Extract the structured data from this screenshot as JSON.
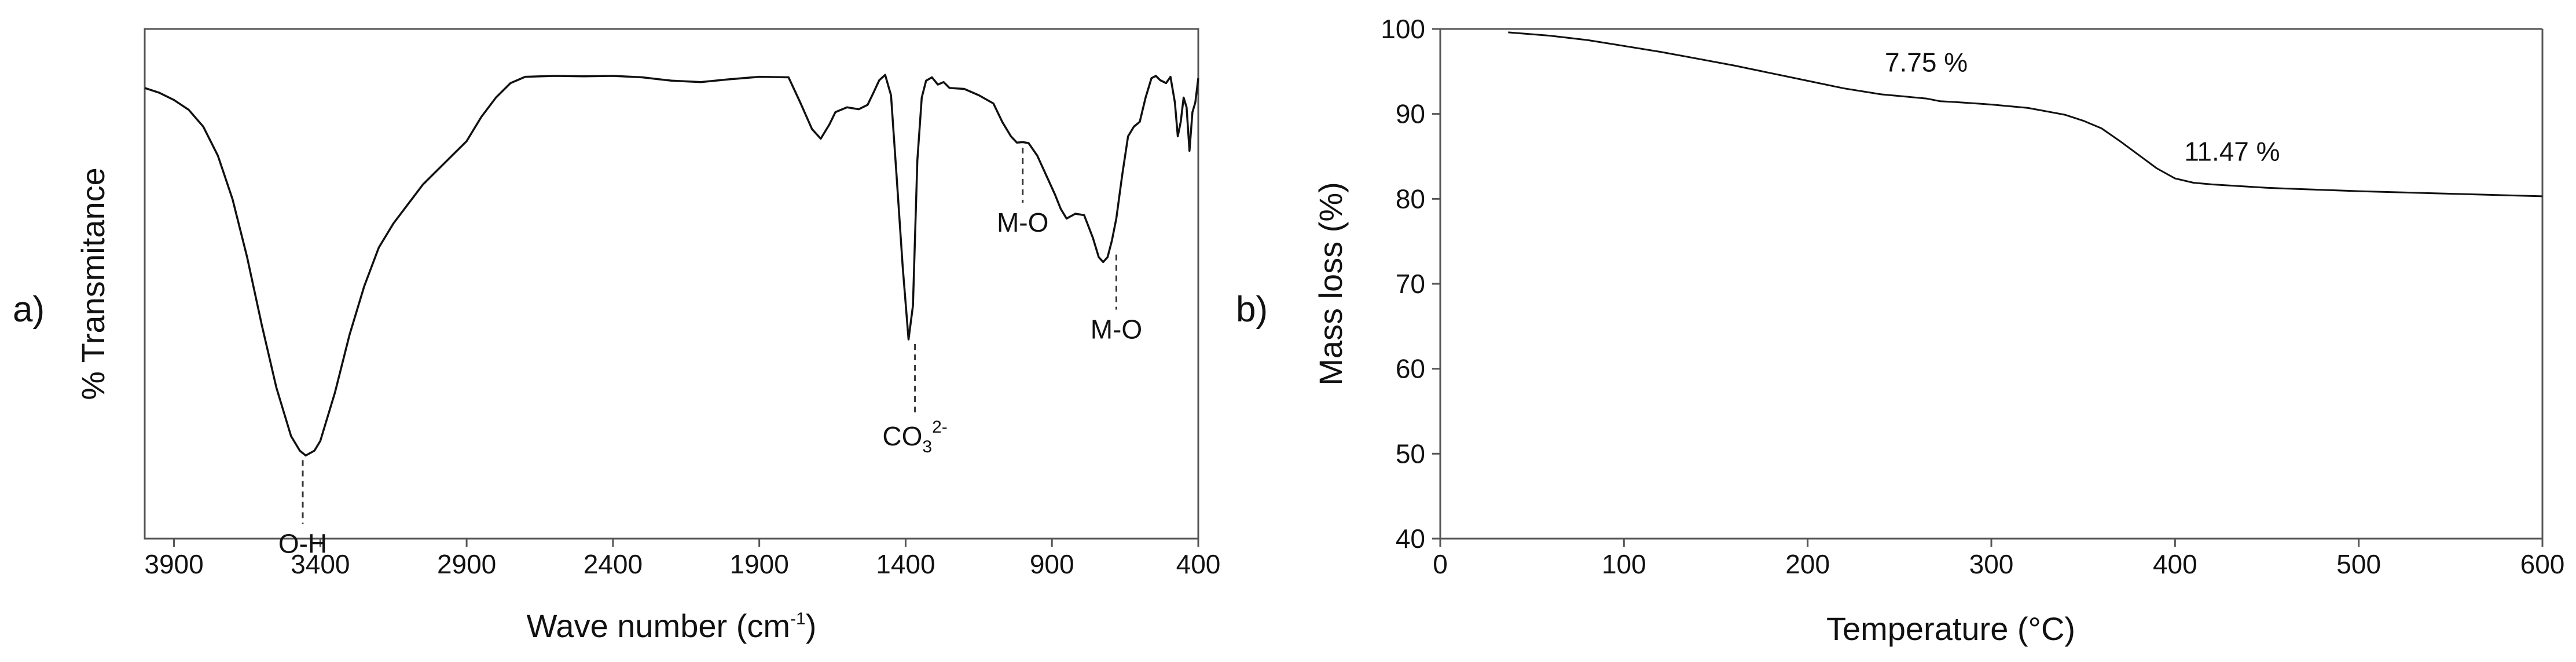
{
  "chart_data": [
    {
      "panel": "a)",
      "type": "line",
      "title": "",
      "xlabel": "Wave number (cm",
      "xlabel_sup": "-1",
      "xlabel_suffix": ")",
      "ylabel": "% Transmitance",
      "xlim": [
        4000,
        400
      ],
      "x_reversed": true,
      "xticks": [
        "3900",
        "3400",
        "2900",
        "2400",
        "1900",
        "1400",
        "900",
        "400"
      ],
      "yticks": [],
      "ylim": [
        0,
        100
      ],
      "grid": false,
      "legend": "none",
      "series": [
        {
          "x": [
            4000,
            3950,
            3900,
            3850,
            3800,
            3750,
            3700,
            3650,
            3600,
            3550,
            3500,
            3470,
            3450,
            3420,
            3400,
            3350,
            3300,
            3250,
            3200,
            3150,
            3100,
            3050,
            3000,
            2950,
            2900,
            2850,
            2800,
            2750,
            2700,
            2600,
            2500,
            2400,
            2300,
            2200,
            2100,
            2000,
            1900,
            1800,
            1760,
            1720,
            1690,
            1660,
            1640,
            1600,
            1560,
            1530,
            1510,
            1490,
            1470,
            1450,
            1430,
            1410,
            1390,
            1375,
            1360,
            1345,
            1330,
            1310,
            1290,
            1270,
            1250,
            1200,
            1150,
            1100,
            1070,
            1040,
            1020,
            1000,
            980,
            950,
            920,
            890,
            870,
            850,
            820,
            790,
            760,
            740,
            725,
            710,
            695,
            680,
            660,
            640,
            620,
            600,
            580,
            560,
            545,
            530,
            510,
            495,
            480,
            470,
            460,
            450,
            440,
            430,
            420,
            410,
            400
          ],
          "y": [
            89,
            88,
            86.5,
            84.5,
            81,
            75,
            66,
            54,
            40,
            27,
            17,
            14,
            13,
            14,
            16,
            26,
            38,
            48,
            56,
            61,
            65,
            69,
            72,
            75,
            78,
            83,
            87,
            90,
            91.3,
            91.5,
            91.4,
            91.5,
            91.2,
            90.5,
            90.2,
            90.8,
            91.3,
            91.2,
            86,
            80.5,
            78.5,
            81.5,
            84,
            85,
            84.6,
            85.5,
            88,
            90.6,
            91.7,
            87.5,
            70,
            52,
            37,
            44,
            74,
            87,
            90.5,
            91.2,
            89.7,
            90.2,
            89,
            88.8,
            87.5,
            85.8,
            82,
            79,
            77.7,
            77.8,
            77.6,
            75,
            71,
            67,
            64,
            62,
            63,
            62.7,
            58,
            54,
            53,
            54,
            57.5,
            62,
            71,
            79,
            81,
            82,
            87,
            91,
            91.5,
            90.6,
            90,
            91.3,
            86,
            79,
            82,
            87,
            85,
            76,
            84,
            86,
            91
          ]
        }
      ],
      "annotations": [
        {
          "label": "O-H",
          "x": 3460,
          "y": 13
        },
        {
          "label": "CO",
          "sub": "3",
          "sup": "2-",
          "x": 1368,
          "y": 37
        },
        {
          "label": "M-O",
          "x": 1000,
          "y": 77.6
        },
        {
          "label": "M-O",
          "x": 680,
          "y": 55.5
        }
      ]
    },
    {
      "panel": "b)",
      "type": "line",
      "title": "",
      "xlabel": "Temperature (°C)",
      "ylabel": "Mass loss (%)",
      "xlim": [
        0,
        600
      ],
      "ylim": [
        40,
        100
      ],
      "xticks": [
        0,
        100,
        200,
        300,
        400,
        500,
        600
      ],
      "yticks": [
        40,
        50,
        60,
        70,
        80,
        90,
        100
      ],
      "grid": false,
      "legend": "none",
      "series": [
        {
          "x": [
            37,
            60,
            80,
            100,
            120,
            140,
            160,
            180,
            200,
            220,
            240,
            255,
            265,
            272,
            280,
            300,
            320,
            340,
            350,
            360,
            370,
            380,
            390,
            400,
            410,
            420,
            450,
            500,
            550,
            600
          ],
          "y": [
            99.6,
            99.2,
            98.7,
            98.0,
            97.3,
            96.5,
            95.7,
            94.8,
            93.9,
            93.0,
            92.3,
            92.0,
            91.8,
            91.5,
            91.4,
            91.1,
            90.7,
            89.9,
            89.2,
            88.3,
            86.8,
            85.2,
            83.6,
            82.4,
            81.9,
            81.7,
            81.3,
            80.9,
            80.6,
            80.3
          ]
        }
      ],
      "annotations": [
        {
          "label": "7.75 %",
          "x": 242,
          "y": 95
        },
        {
          "label": "11.47 %",
          "x": 405,
          "y": 84.5
        }
      ]
    }
  ]
}
